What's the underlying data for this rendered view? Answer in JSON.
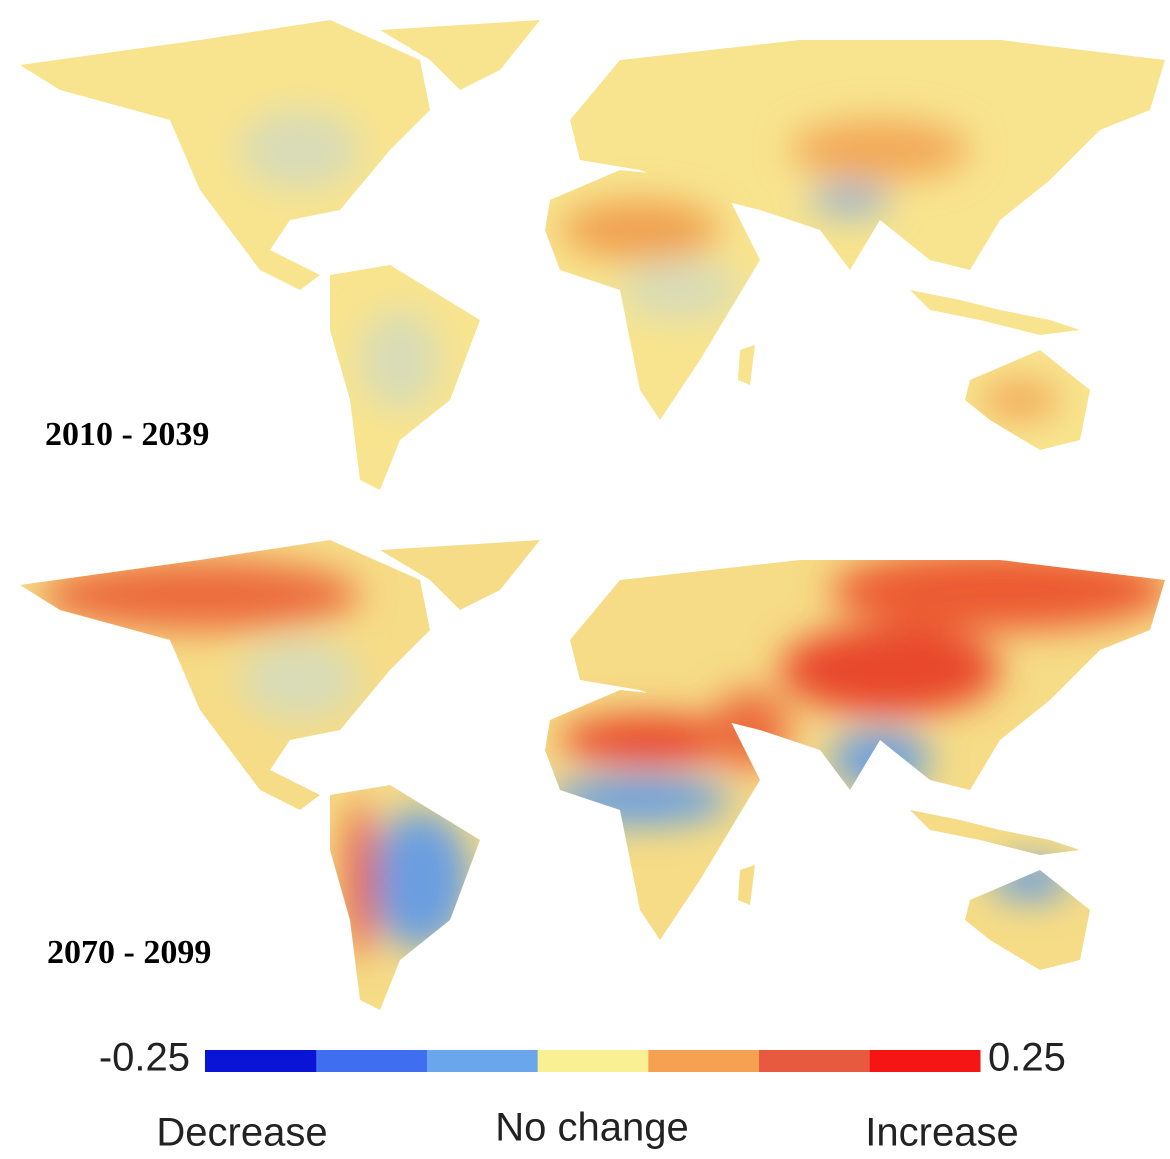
{
  "panels": [
    {
      "label": "2010 - 2039"
    },
    {
      "label": "2070 - 2099"
    }
  ],
  "legend": {
    "min": -0.25,
    "max": 0.25,
    "colors": [
      "#0a14d6",
      "#3f6ef0",
      "#69a6ec",
      "#f9ef93",
      "#f6a151",
      "#e75a3f",
      "#f51515"
    ],
    "descriptors": [
      "Decrease",
      "No change",
      "Increase"
    ]
  }
}
